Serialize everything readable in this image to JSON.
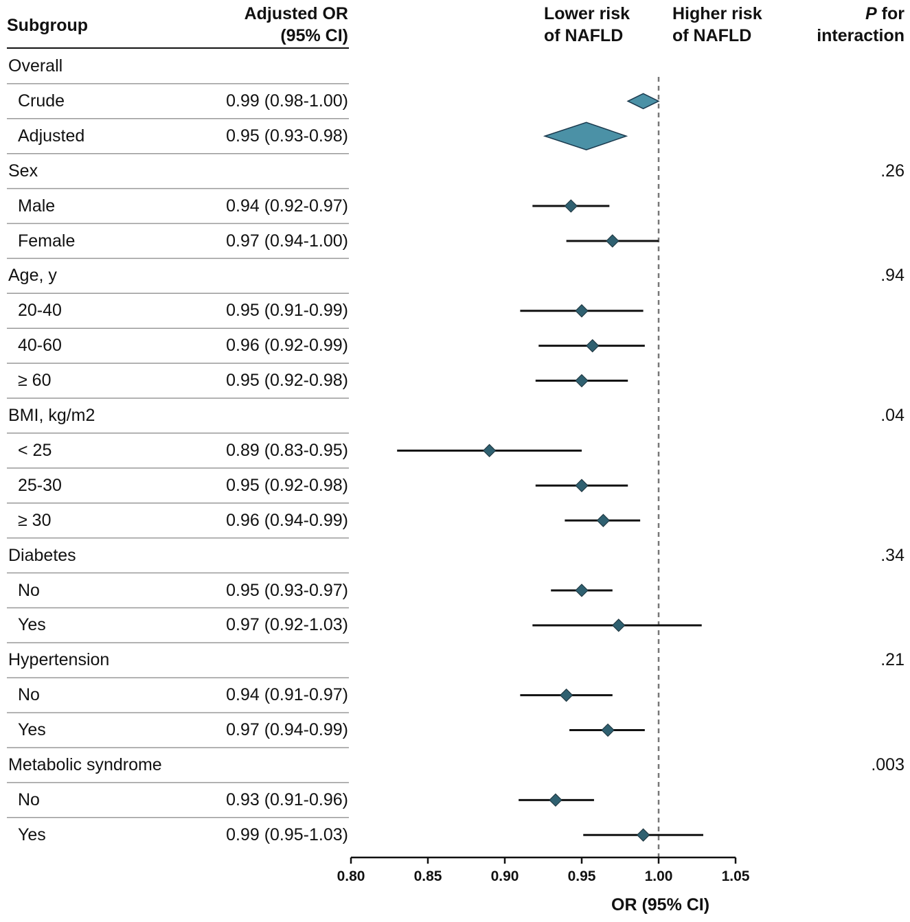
{
  "headers": {
    "subgroup": "Subgroup",
    "or_line1": "Adjusted OR",
    "or_line2": "(95% CI)",
    "lower_line1": "Lower risk",
    "lower_line2": "of NAFLD",
    "higher_line1": "Higher risk",
    "higher_line2": "of NAFLD",
    "p_line1_italic": "P",
    "p_line1_rest": " for",
    "p_line2": "interaction"
  },
  "chart_data": {
    "type": "forest",
    "xlabel": "OR (95% CI)",
    "xlim": [
      0.8,
      1.05
    ],
    "xticks": [
      "0.80",
      "0.85",
      "0.90",
      "0.95",
      "1.00",
      "1.05"
    ],
    "reference_line": 1.0,
    "colors": {
      "diamond": "#4b91a6",
      "marker": "#2f6070",
      "line": "#111111",
      "rule": "#999999",
      "ref": "#777777"
    },
    "rows": [
      {
        "label": "Overall",
        "level": "group"
      },
      {
        "label": "Crude",
        "level": "sub",
        "text": "0.99 (0.98-1.00)",
        "or": 0.99,
        "lo": 0.98,
        "hi": 1.0,
        "shape": "diamond-summary"
      },
      {
        "label": "Adjusted",
        "level": "sub",
        "text": "0.95 (0.93-0.98)",
        "or": 0.953,
        "lo": 0.926,
        "hi": 0.979,
        "shape": "diamond-summary"
      },
      {
        "label": "Sex",
        "level": "group",
        "p": ".26"
      },
      {
        "label": "Male",
        "level": "sub",
        "text": "0.94 (0.92-0.97)",
        "or": 0.943,
        "lo": 0.918,
        "hi": 0.968
      },
      {
        "label": "Female",
        "level": "sub",
        "text": "0.97 (0.94-1.00)",
        "or": 0.97,
        "lo": 0.94,
        "hi": 1.0
      },
      {
        "label": "Age, y",
        "level": "group",
        "p": ".94"
      },
      {
        "label": "20-40",
        "level": "sub",
        "text": "0.95 (0.91-0.99)",
        "or": 0.95,
        "lo": 0.91,
        "hi": 0.99
      },
      {
        "label": "40-60",
        "level": "sub",
        "text": "0.96 (0.92-0.99)",
        "or": 0.957,
        "lo": 0.922,
        "hi": 0.991
      },
      {
        "label": "≥ 60",
        "level": "sub",
        "text": "0.95 (0.92-0.98)",
        "or": 0.95,
        "lo": 0.92,
        "hi": 0.98
      },
      {
        "label": "BMI, kg/m2",
        "level": "group",
        "p": ".04"
      },
      {
        "label": "< 25",
        "level": "sub",
        "text": "0.89 (0.83-0.95)",
        "or": 0.89,
        "lo": 0.83,
        "hi": 0.95
      },
      {
        "label": "25-30",
        "level": "sub",
        "text": "0.95 (0.92-0.98)",
        "or": 0.95,
        "lo": 0.92,
        "hi": 0.98
      },
      {
        "label": "≥ 30",
        "level": "sub",
        "text": "0.96 (0.94-0.99)",
        "or": 0.964,
        "lo": 0.939,
        "hi": 0.988
      },
      {
        "label": "Diabetes",
        "level": "group",
        "p": ".34"
      },
      {
        "label": "No",
        "level": "sub",
        "text": "0.95 (0.93-0.97)",
        "or": 0.95,
        "lo": 0.93,
        "hi": 0.97
      },
      {
        "label": "Yes",
        "level": "sub",
        "text": "0.97 (0.92-1.03)",
        "or": 0.974,
        "lo": 0.918,
        "hi": 1.028
      },
      {
        "label": "Hypertension",
        "level": "group",
        "p": ".21"
      },
      {
        "label": "No",
        "level": "sub",
        "text": "0.94 (0.91-0.97)",
        "or": 0.94,
        "lo": 0.91,
        "hi": 0.97
      },
      {
        "label": "Yes",
        "level": "sub",
        "text": "0.97 (0.94-0.99)",
        "or": 0.967,
        "lo": 0.942,
        "hi": 0.991
      },
      {
        "label": "Metabolic syndrome",
        "level": "group",
        "p": ".003"
      },
      {
        "label": "No",
        "level": "sub",
        "text": "0.93 (0.91-0.96)",
        "or": 0.933,
        "lo": 0.909,
        "hi": 0.958
      },
      {
        "label": "Yes",
        "level": "sub",
        "text": "0.99 (0.95-1.03)",
        "or": 0.99,
        "lo": 0.951,
        "hi": 1.029
      }
    ]
  }
}
